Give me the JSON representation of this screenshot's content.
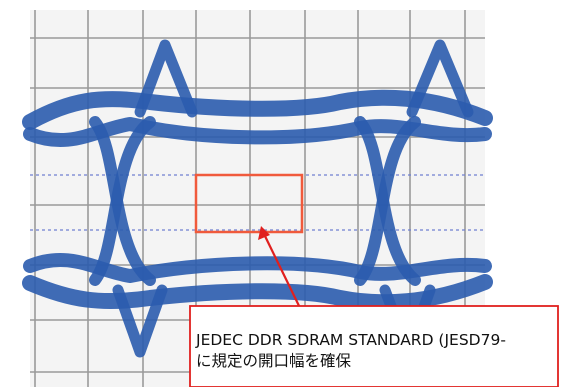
{
  "annotation": {
    "lines": [
      "JEDEC DDR SDRAM STANDARD (JESD79-",
      "に規定の開口幅を確保"
    ]
  }
}
